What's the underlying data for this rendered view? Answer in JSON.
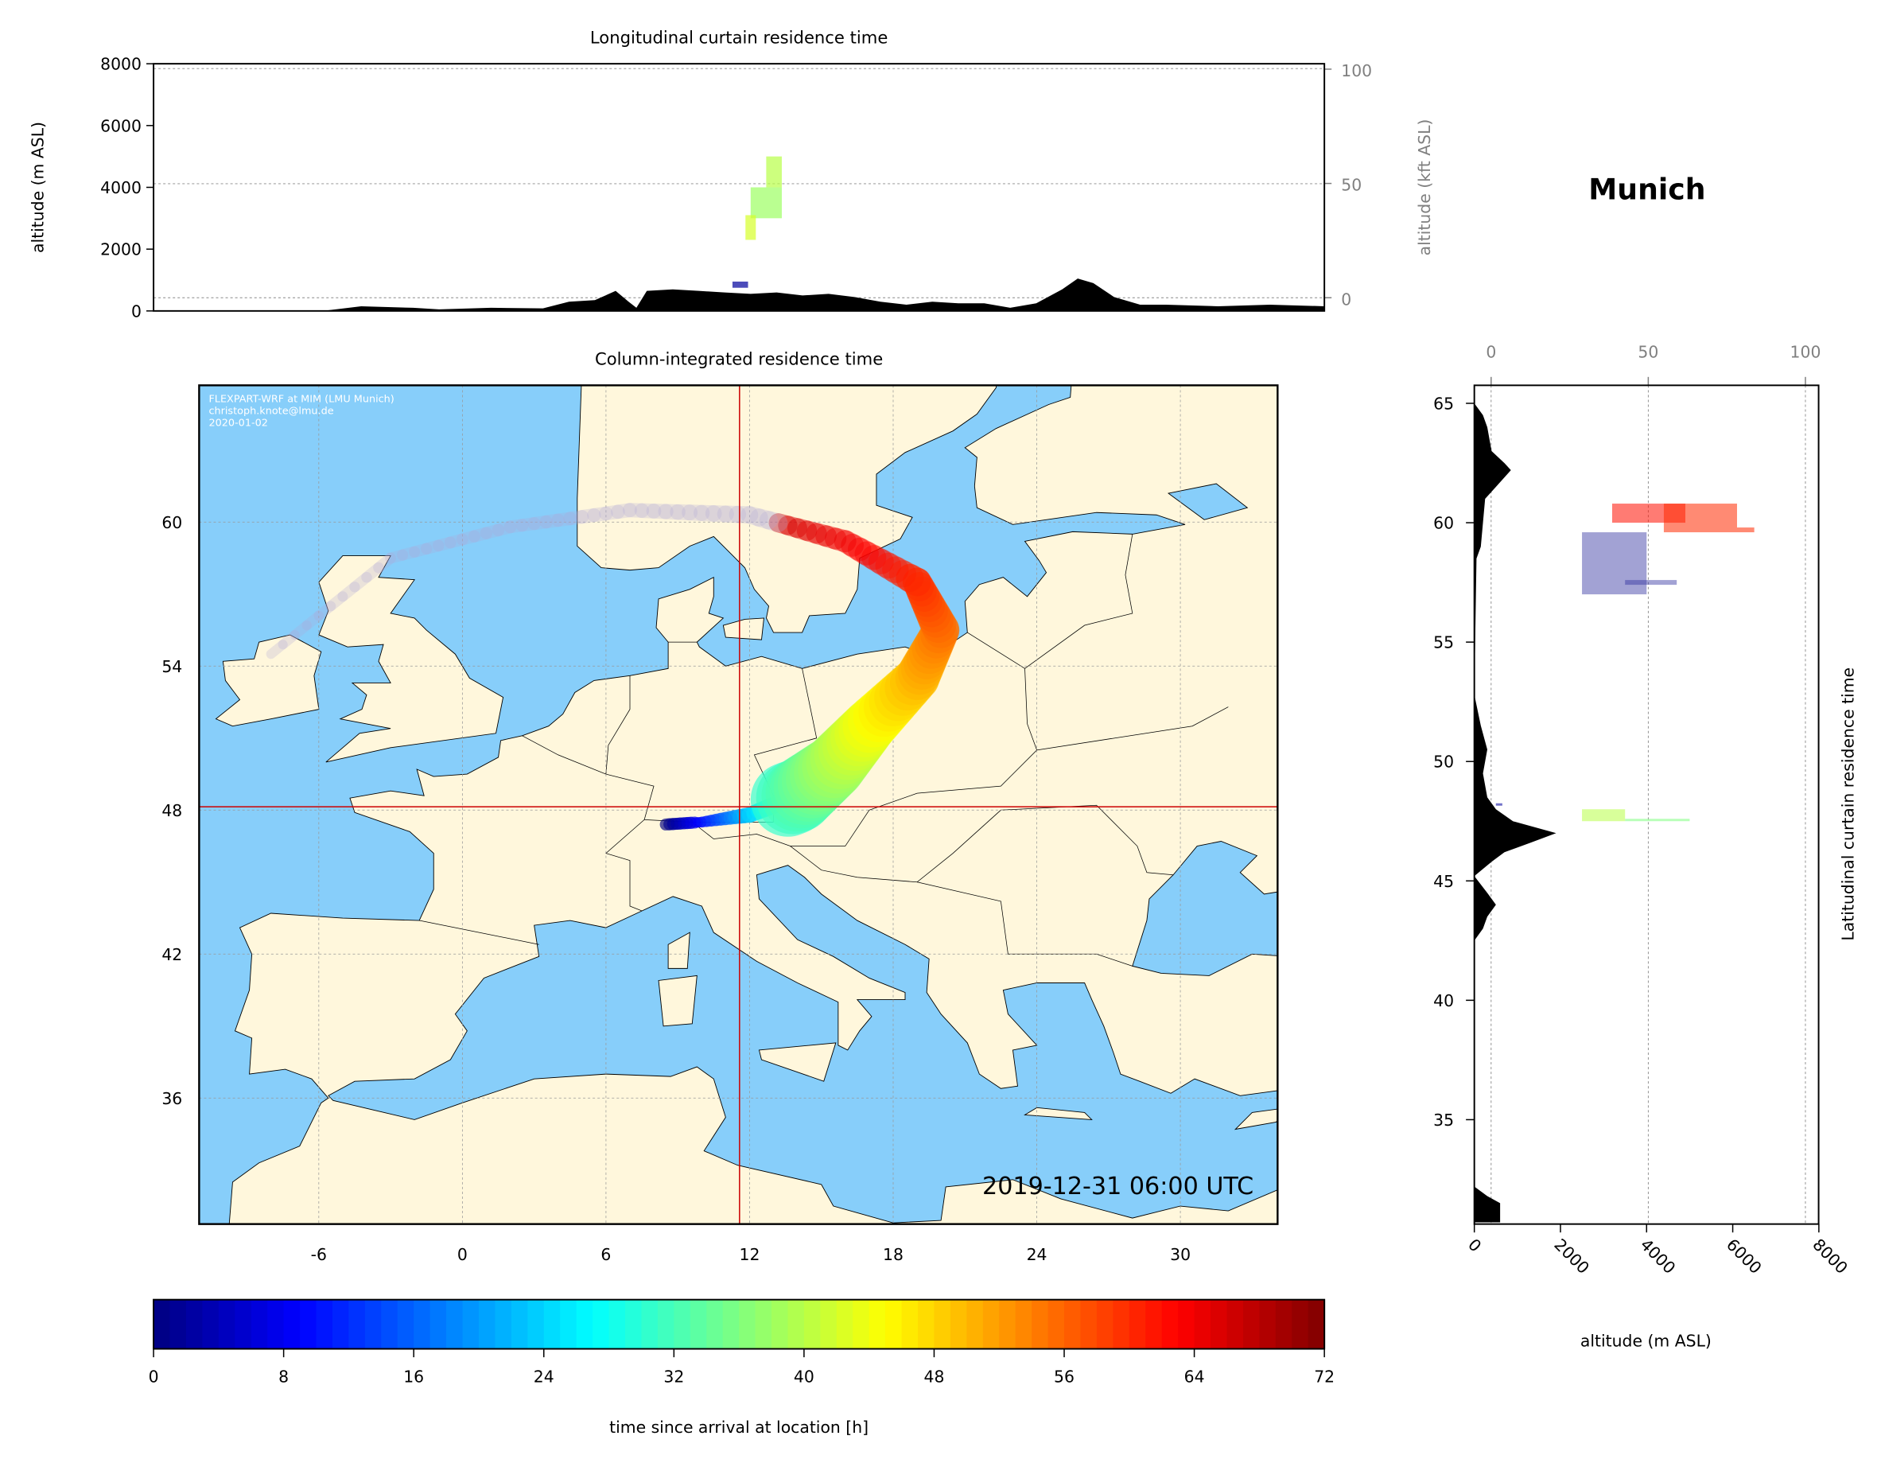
{
  "figure": {
    "location_title": "Munich"
  },
  "chart_data": [
    {
      "type": "area",
      "title": "Longitudinal curtain residence time",
      "ylabel": "altitude (m ASL)",
      "ylabel_right": "altitude (kft ASL)",
      "xlim": [
        -11,
        34.1
      ],
      "ylim": [
        0,
        8000
      ],
      "yticks": [
        "0",
        "2000",
        "4000",
        "6000",
        "8000"
      ],
      "yticks_right": [
        "0",
        "50",
        "100"
      ],
      "terrain": [
        [
          -11,
          0
        ],
        [
          -4.5,
          0
        ],
        [
          -3,
          150
        ],
        [
          -1,
          100
        ],
        [
          0,
          50
        ],
        [
          2,
          100
        ],
        [
          4,
          80
        ],
        [
          5,
          300
        ],
        [
          6,
          350
        ],
        [
          6.8,
          650
        ],
        [
          7.3,
          300
        ],
        [
          7.6,
          100
        ],
        [
          8,
          650
        ],
        [
          9,
          700
        ],
        [
          10,
          650
        ],
        [
          11,
          600
        ],
        [
          12,
          550
        ],
        [
          13,
          600
        ],
        [
          14,
          500
        ],
        [
          15,
          550
        ],
        [
          16,
          450
        ],
        [
          17,
          300
        ],
        [
          18,
          200
        ],
        [
          19,
          300
        ],
        [
          20,
          250
        ],
        [
          21,
          250
        ],
        [
          22,
          100
        ],
        [
          23,
          250
        ],
        [
          24,
          700
        ],
        [
          24.6,
          1050
        ],
        [
          25.2,
          900
        ],
        [
          26,
          450
        ],
        [
          27,
          200
        ],
        [
          28,
          200
        ],
        [
          30,
          150
        ],
        [
          32,
          200
        ],
        [
          34.1,
          150
        ]
      ],
      "residence_blocks": [
        {
          "lon": [
            11.3,
            11.9
          ],
          "alt": [
            750,
            950
          ],
          "t": 2
        },
        {
          "lon": [
            12.0,
            13.2
          ],
          "alt": [
            3000,
            4000
          ],
          "t": 38
        },
        {
          "lon": [
            12.6,
            13.2
          ],
          "alt": [
            4000,
            5000
          ],
          "t": 40
        },
        {
          "lon": [
            11.8,
            12.2
          ],
          "alt": [
            2300,
            3100
          ],
          "t": 42
        }
      ]
    },
    {
      "type": "map",
      "title": "Column-integrated residence time",
      "xlim": [
        -11,
        34.1
      ],
      "ylim": [
        30.7,
        65.7
      ],
      "xticks": [
        "-6",
        "0",
        "6",
        "12",
        "18",
        "24",
        "30"
      ],
      "yticks": [
        "60",
        "54",
        "48",
        "42",
        "36"
      ],
      "annotation": [
        "FLEXPART-WRF at MIM (LMU Munich)",
        "christoph.knote@lmu.de",
        "2020-01-02"
      ],
      "timestamp": "2019-12-31 06:00 UTC",
      "crosshair": {
        "lon": 11.58,
        "lat": 48.14
      },
      "colors": {
        "land": "#FFF7DC",
        "sea": "#87CEFA",
        "crosshair": "#CC0000"
      },
      "trajectory": [
        [
          8.5,
          47.4,
          0
        ],
        [
          10,
          47.5,
          10
        ],
        [
          12,
          47.8,
          24
        ],
        [
          14,
          48.6,
          32
        ],
        [
          15.5,
          49.8,
          38
        ],
        [
          17,
          51.5,
          44
        ],
        [
          19,
          53.5,
          50
        ],
        [
          20,
          55.5,
          55
        ],
        [
          19,
          57.5,
          60
        ],
        [
          16,
          59.2,
          64
        ],
        [
          12,
          60.3,
          67
        ],
        [
          7,
          60.5,
          69
        ],
        [
          2,
          59.8,
          70
        ],
        [
          -3,
          58.5,
          71
        ],
        [
          -8,
          54.5,
          72
        ]
      ]
    },
    {
      "type": "area",
      "title": "Latitudinal curtain residence time",
      "xlabel": "altitude (m ASL)",
      "xlim": [
        0,
        8000
      ],
      "ylim": [
        30.7,
        65.8
      ],
      "xticks": [
        "0",
        "2000",
        "4000",
        "6000",
        "8000"
      ],
      "xticks_top": [
        "0",
        "50",
        "100"
      ],
      "yticks": [
        "65",
        "60",
        "55",
        "50",
        "45",
        "40",
        "35"
      ],
      "terrain": [
        [
          65.8,
          0
        ],
        [
          65,
          0
        ],
        [
          64.5,
          200
        ],
        [
          64,
          300
        ],
        [
          63,
          400
        ],
        [
          62.5,
          700
        ],
        [
          62.2,
          850
        ],
        [
          61.5,
          500
        ],
        [
          61,
          250
        ],
        [
          60,
          200
        ],
        [
          59,
          150
        ],
        [
          58.5,
          50
        ],
        [
          52.8,
          0
        ],
        [
          51.5,
          150
        ],
        [
          50.5,
          300
        ],
        [
          49.5,
          200
        ],
        [
          48.5,
          300
        ],
        [
          48,
          500
        ],
        [
          47.5,
          900
        ],
        [
          47,
          1900
        ],
        [
          46.6,
          1300
        ],
        [
          46.2,
          700
        ],
        [
          45.8,
          400
        ],
        [
          45.2,
          0
        ],
        [
          44.5,
          300
        ],
        [
          44,
          500
        ],
        [
          43.5,
          300
        ],
        [
          43,
          200
        ],
        [
          42.5,
          0
        ],
        [
          32.2,
          0
        ],
        [
          31.8,
          300
        ],
        [
          31.5,
          600
        ],
        [
          30.7,
          600
        ]
      ],
      "residence_blocks": [
        {
          "lat": [
            60.0,
            60.8
          ],
          "alt": [
            3200,
            4900
          ],
          "t": 62
        },
        {
          "lat": [
            59.6,
            60.8
          ],
          "alt": [
            4400,
            6100
          ],
          "t": 60
        },
        {
          "lat": [
            59.6,
            59.8
          ],
          "alt": [
            6100,
            6500
          ],
          "t": 60
        },
        {
          "lat": [
            57.0,
            59.6
          ],
          "alt": [
            2500,
            4000
          ],
          "t": 68
        },
        {
          "lat": [
            57.4,
            57.6
          ],
          "alt": [
            3500,
            4700
          ],
          "t": 70
        },
        {
          "lat": [
            47.5,
            48.0
          ],
          "alt": [
            2500,
            3500
          ],
          "t": 40
        },
        {
          "lat": [
            47.5,
            47.6
          ],
          "alt": [
            3500,
            5000
          ],
          "t": 36
        },
        {
          "lat": [
            48.15,
            48.25
          ],
          "alt": [
            500,
            650
          ],
          "t": 2
        }
      ]
    },
    {
      "type": "colorbar",
      "label": "time since arrival at location [h]",
      "range": [
        0,
        72
      ],
      "ticks": [
        "0",
        "8",
        "16",
        "24",
        "32",
        "40",
        "48",
        "56",
        "64",
        "72"
      ],
      "colormap": "jet"
    }
  ]
}
